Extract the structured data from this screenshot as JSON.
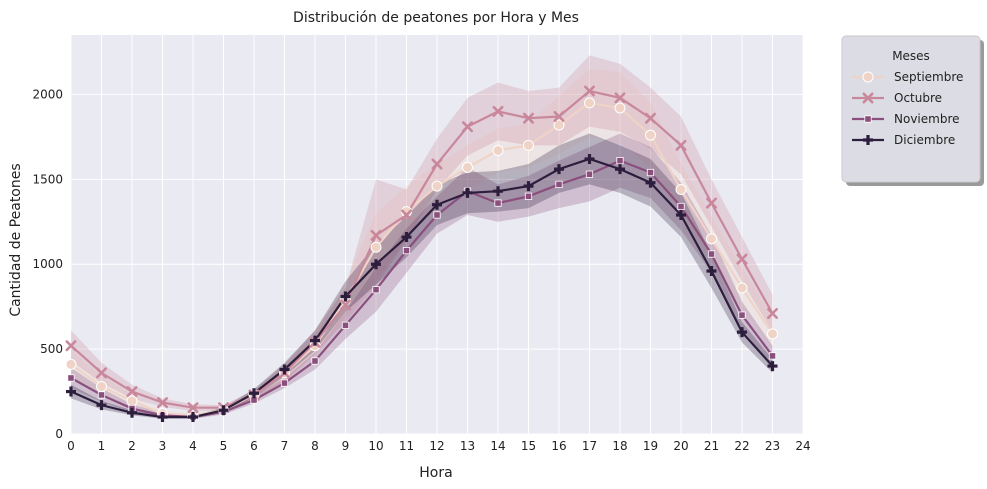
{
  "chart_data": {
    "type": "line",
    "title": "Distribución de peatones por Hora y Mes",
    "xlabel": "Hora",
    "ylabel": "Cantidad de Peatones",
    "xlim": [
      0,
      24
    ],
    "ylim": [
      0,
      2350
    ],
    "x_ticks": [
      "0",
      "1",
      "2",
      "3",
      "4",
      "5",
      "6",
      "7",
      "8",
      "9",
      "10",
      "11",
      "12",
      "13",
      "14",
      "15",
      "16",
      "17",
      "18",
      "19",
      "20",
      "21",
      "22",
      "23",
      "24"
    ],
    "y_ticks": [
      "0",
      "500",
      "1000",
      "1500",
      "2000"
    ],
    "grid": true,
    "legend": {
      "title": "Meses",
      "placement": "outside-top-right"
    },
    "x": [
      0,
      1,
      2,
      3,
      4,
      5,
      6,
      7,
      8,
      9,
      10,
      11,
      12,
      13,
      14,
      15,
      16,
      17,
      18,
      19,
      20,
      21,
      22,
      23
    ],
    "series": [
      {
        "name": "Septiembre",
        "marker": "circle",
        "color": "#efd3c6",
        "values": [
          410,
          280,
          195,
          120,
          110,
          140,
          230,
          360,
          520,
          790,
          1100,
          1310,
          1460,
          1570,
          1670,
          1700,
          1820,
          1950,
          1920,
          1760,
          1440,
          1150,
          860,
          590
        ],
        "ci_low": [
          330,
          220,
          160,
          100,
          95,
          120,
          200,
          310,
          450,
          690,
          900,
          1150,
          1330,
          1440,
          1540,
          1570,
          1650,
          1750,
          1710,
          1570,
          1290,
          1020,
          740,
          500
        ],
        "ci_high": [
          490,
          340,
          230,
          140,
          125,
          160,
          260,
          410,
          590,
          890,
          1300,
          1460,
          1590,
          1700,
          1800,
          1830,
          1990,
          2150,
          2130,
          1950,
          1590,
          1280,
          980,
          680
        ]
      },
      {
        "name": "Octubre",
        "marker": "x",
        "color": "#c9879c",
        "values": [
          520,
          360,
          250,
          185,
          155,
          155,
          230,
          360,
          540,
          760,
          1170,
          1290,
          1590,
          1810,
          1900,
          1860,
          1870,
          2020,
          1980,
          1860,
          1700,
          1360,
          1030,
          710
        ],
        "ci_low": [
          430,
          300,
          210,
          160,
          135,
          140,
          200,
          310,
          470,
          660,
          870,
          1140,
          1440,
          1640,
          1730,
          1700,
          1700,
          1810,
          1780,
          1680,
          1530,
          1220,
          900,
          600
        ],
        "ci_high": [
          610,
          420,
          290,
          210,
          175,
          170,
          260,
          410,
          610,
          860,
          1500,
          1440,
          1740,
          1980,
          2070,
          2020,
          2040,
          2230,
          2180,
          2040,
          1870,
          1500,
          1160,
          820
        ]
      },
      {
        "name": "Noviembre",
        "marker": "square",
        "color": "#8a4f7d",
        "values": [
          330,
          230,
          150,
          110,
          100,
          130,
          200,
          300,
          430,
          640,
          850,
          1080,
          1290,
          1430,
          1360,
          1400,
          1470,
          1530,
          1610,
          1540,
          1340,
          1060,
          700,
          460
        ],
        "ci_low": [
          270,
          190,
          125,
          95,
          90,
          115,
          180,
          270,
          380,
          560,
          720,
          950,
          1180,
          1290,
          1250,
          1280,
          1330,
          1370,
          1450,
          1390,
          1200,
          950,
          620,
          400
        ],
        "ci_high": [
          390,
          270,
          175,
          125,
          110,
          145,
          220,
          330,
          480,
          720,
          980,
          1210,
          1400,
          1570,
          1470,
          1520,
          1610,
          1690,
          1770,
          1690,
          1480,
          1170,
          780,
          520
        ]
      },
      {
        "name": "Diciembre",
        "marker": "plus",
        "color": "#2d1e3e",
        "values": [
          250,
          170,
          125,
          100,
          100,
          140,
          240,
          380,
          550,
          810,
          1000,
          1160,
          1350,
          1420,
          1430,
          1460,
          1560,
          1620,
          1560,
          1480,
          1290,
          960,
          600,
          400
        ],
        "ci_low": [
          210,
          145,
          110,
          90,
          90,
          125,
          215,
          340,
          490,
          720,
          880,
          1040,
          1230,
          1300,
          1310,
          1330,
          1420,
          1470,
          1420,
          1340,
          1160,
          860,
          540,
          360
        ],
        "ci_high": [
          290,
          195,
          140,
          110,
          110,
          155,
          265,
          420,
          610,
          900,
          1120,
          1280,
          1470,
          1540,
          1550,
          1590,
          1700,
          1770,
          1700,
          1620,
          1420,
          1060,
          660,
          440
        ]
      }
    ]
  }
}
